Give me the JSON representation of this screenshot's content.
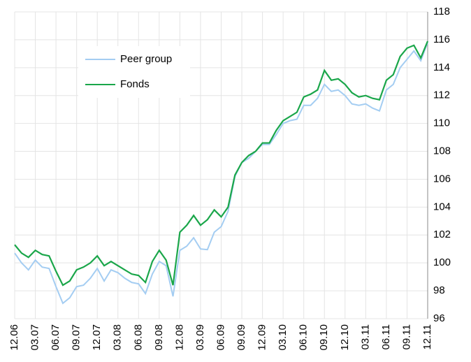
{
  "chart_data": {
    "type": "line",
    "categories": [
      "12.06",
      null,
      null,
      "03.07",
      null,
      null,
      "06.07",
      null,
      null,
      "09.07",
      null,
      null,
      "12.07",
      null,
      null,
      "03.08",
      null,
      null,
      "06.08",
      null,
      null,
      "09.08",
      null,
      null,
      "12.08",
      null,
      null,
      "03.09",
      null,
      null,
      "06.09",
      null,
      null,
      "09.09",
      null,
      null,
      "12.09",
      null,
      null,
      "03.10",
      null,
      null,
      "06.10",
      null,
      null,
      "09.10",
      null,
      null,
      "12.10",
      null,
      null,
      "03.11",
      null,
      null,
      "06.11",
      null,
      null,
      "09.11",
      null,
      null,
      "12.11"
    ],
    "series": [
      {
        "name": "Peer group",
        "color": "#a4cdf2",
        "values": [
          100.7,
          100.0,
          99.5,
          100.2,
          99.7,
          99.6,
          98.3,
          97.1,
          97.5,
          98.3,
          98.4,
          98.9,
          99.6,
          98.7,
          99.5,
          99.3,
          98.9,
          98.6,
          98.5,
          97.8,
          99.2,
          100.1,
          99.8,
          97.6,
          100.9,
          101.2,
          101.8,
          101.0,
          100.95,
          102.2,
          102.6,
          103.7,
          106.2,
          107.2,
          107.5,
          108.0,
          108.5,
          108.5,
          109.2,
          110.0,
          110.2,
          110.3,
          111.3,
          111.3,
          111.8,
          112.8,
          112.3,
          112.4,
          112.0,
          111.4,
          111.3,
          111.4,
          111.1,
          110.9,
          112.4,
          112.8,
          114.0,
          114.6,
          115.2,
          114.5,
          115.8
        ]
      },
      {
        "name": "Fonds",
        "color": "#1aa64a",
        "values": [
          101.3,
          100.7,
          100.4,
          100.9,
          100.6,
          100.5,
          99.4,
          98.4,
          98.7,
          99.5,
          99.7,
          100.0,
          100.5,
          99.8,
          100.1,
          99.8,
          99.5,
          99.2,
          99.1,
          98.6,
          100.1,
          100.9,
          100.2,
          98.4,
          102.2,
          102.7,
          103.4,
          102.7,
          103.1,
          103.8,
          103.3,
          104.0,
          106.3,
          107.2,
          107.7,
          108.0,
          108.6,
          108.6,
          109.5,
          110.2,
          110.5,
          110.8,
          111.9,
          112.1,
          112.4,
          113.8,
          113.1,
          113.2,
          112.8,
          112.2,
          111.9,
          112.0,
          111.8,
          111.7,
          113.1,
          113.5,
          114.8,
          115.4,
          115.6,
          114.7,
          115.9
        ]
      }
    ],
    "ylim": [
      96,
      118
    ],
    "yticks": [
      96,
      98,
      100,
      102,
      104,
      106,
      108,
      110,
      112,
      114,
      116,
      118
    ],
    "grid": true
  }
}
